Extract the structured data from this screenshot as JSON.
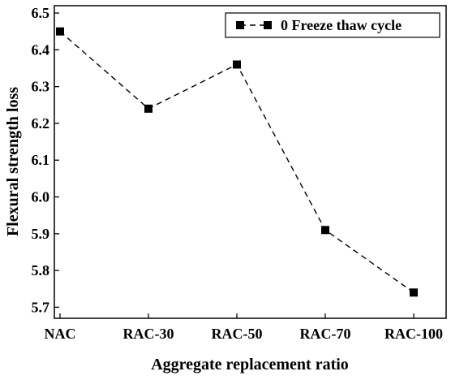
{
  "chart_data": {
    "type": "line",
    "title": "",
    "xlabel": "Aggregate replacement ratio",
    "ylabel": "Flexural strength loss",
    "categories": [
      "NAC",
      "RAC-30",
      "RAC-50",
      "RAC-70",
      "RAC-100"
    ],
    "series": [
      {
        "name": "0 Freeze thaw cycle",
        "values": [
          6.45,
          6.24,
          6.36,
          5.91,
          5.74
        ],
        "color": "#000000",
        "marker": "square",
        "line_style": "dashed"
      }
    ],
    "ylim": [
      5.67,
      6.52
    ],
    "yticks": [
      "5.7",
      "5.8",
      "5.9",
      "6.0",
      "6.1",
      "6.2",
      "6.3",
      "6.4",
      "6.5"
    ],
    "grid": false,
    "legend_position": "top-right"
  }
}
